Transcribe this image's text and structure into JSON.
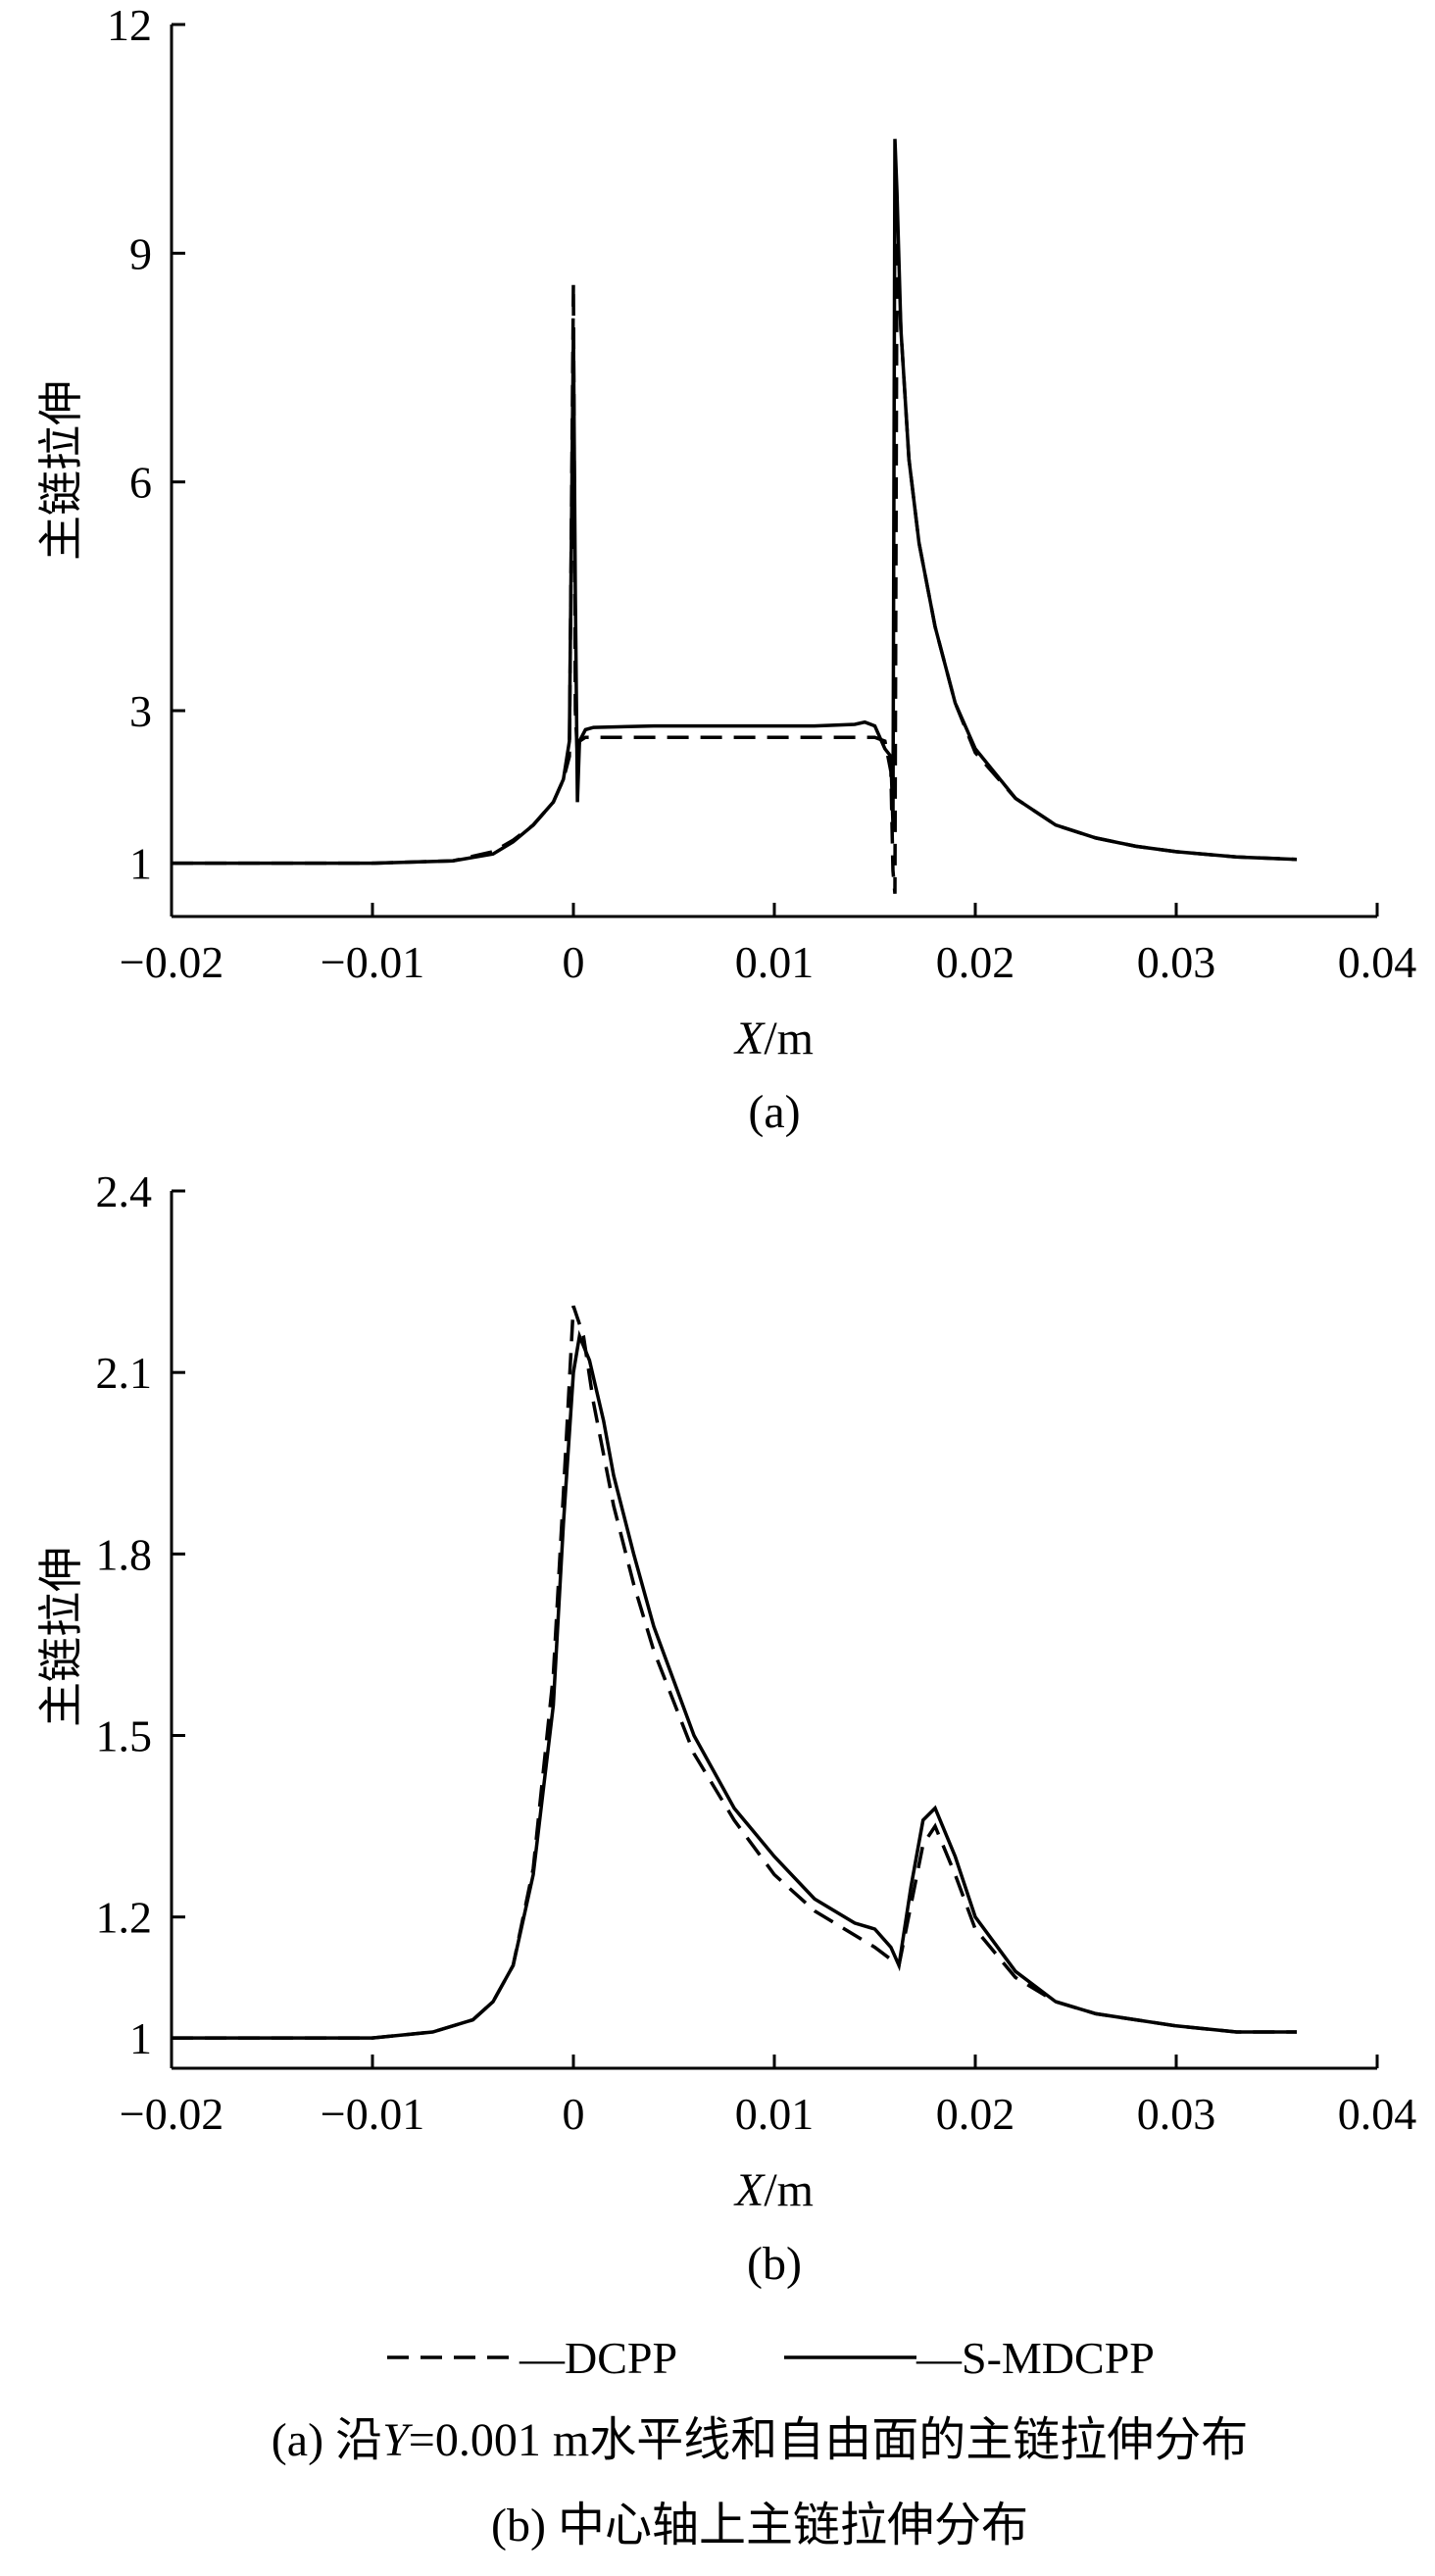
{
  "chart_data": [
    {
      "type": "line",
      "panel_label": "(a)",
      "xlabel_italic": "X",
      "xlabel_unit": "/m",
      "ylabel": "主链拉伸",
      "xlim": [
        -0.02,
        0.04
      ],
      "ylim": [
        0.3,
        12
      ],
      "xticks": [
        -0.02,
        -0.01,
        0,
        0.01,
        0.02,
        0.03,
        0.04
      ],
      "xtick_labels": [
        "−0.02",
        "−0.01",
        "0",
        "0.01",
        "0.02",
        "0.03",
        "0.04"
      ],
      "yticks": [
        1,
        3,
        6,
        9,
        12
      ],
      "ytick_labels": [
        "1",
        "3",
        "6",
        "9",
        "12"
      ],
      "series": [
        {
          "name": "DCPP",
          "style": "dashed",
          "x": [
            -0.02,
            -0.01,
            -0.006,
            -0.004,
            -0.003,
            -0.002,
            -0.001,
            -0.0005,
            -0.0002,
            0.0,
            0.0001,
            0.0002,
            0.0003,
            0.0006,
            0.001,
            0.004,
            0.008,
            0.012,
            0.015,
            0.0155,
            0.0158,
            0.0159,
            0.016,
            0.0161,
            0.0163,
            0.0167,
            0.0172,
            0.018,
            0.019,
            0.02,
            0.022,
            0.024,
            0.026,
            0.028,
            0.03,
            0.033,
            0.036
          ],
          "y": [
            1.0,
            1.0,
            1.03,
            1.15,
            1.3,
            1.5,
            1.8,
            2.1,
            2.4,
            8.6,
            3.0,
            2.4,
            2.6,
            2.65,
            2.65,
            2.65,
            2.65,
            2.65,
            2.65,
            2.6,
            2.2,
            0.9,
            0.6,
            9.2,
            8.0,
            6.3,
            5.2,
            4.1,
            3.1,
            2.45,
            1.85,
            1.5,
            1.33,
            1.22,
            1.15,
            1.08,
            1.05
          ]
        },
        {
          "name": "S-MDCPP",
          "style": "solid",
          "x": [
            -0.02,
            -0.01,
            -0.006,
            -0.004,
            -0.003,
            -0.002,
            -0.001,
            -0.0005,
            -0.0002,
            0.0,
            0.0001,
            0.0002,
            0.0003,
            0.0006,
            0.001,
            0.004,
            0.008,
            0.012,
            0.014,
            0.0145,
            0.015,
            0.0155,
            0.0158,
            0.0159,
            0.016,
            0.0161,
            0.0163,
            0.0167,
            0.0172,
            0.018,
            0.019,
            0.02,
            0.022,
            0.024,
            0.026,
            0.028,
            0.03,
            0.033,
            0.036
          ],
          "y": [
            1.0,
            1.0,
            1.03,
            1.12,
            1.28,
            1.5,
            1.8,
            2.1,
            2.6,
            8.0,
            4.5,
            1.8,
            2.6,
            2.75,
            2.78,
            2.8,
            2.8,
            2.8,
            2.82,
            2.85,
            2.8,
            2.5,
            2.4,
            1.5,
            10.5,
            9.8,
            8.0,
            6.3,
            5.2,
            4.1,
            3.1,
            2.5,
            1.85,
            1.5,
            1.33,
            1.22,
            1.15,
            1.08,
            1.05
          ]
        }
      ]
    },
    {
      "type": "line",
      "panel_label": "(b)",
      "xlabel_italic": "X",
      "xlabel_unit": "/m",
      "ylabel": "主链拉伸",
      "xlim": [
        -0.02,
        0.04
      ],
      "ylim": [
        0.95,
        2.4
      ],
      "xticks": [
        -0.02,
        -0.01,
        0,
        0.01,
        0.02,
        0.03,
        0.04
      ],
      "xtick_labels": [
        "−0.02",
        "−0.01",
        "0",
        "0.01",
        "0.02",
        "0.03",
        "0.04"
      ],
      "yticks": [
        1,
        1.2,
        1.5,
        1.8,
        2.1,
        2.4
      ],
      "ytick_labels": [
        "1",
        "1.2",
        "1.5",
        "1.8",
        "2.1",
        "2.4"
      ],
      "series": [
        {
          "name": "DCPP",
          "style": "dashed",
          "x": [
            -0.02,
            -0.01,
            -0.007,
            -0.005,
            -0.004,
            -0.003,
            -0.002,
            -0.001,
            -0.0005,
            0.0,
            0.0005,
            0.001,
            0.002,
            0.003,
            0.004,
            0.006,
            0.008,
            0.01,
            0.012,
            0.014,
            0.015,
            0.0158,
            0.0162,
            0.0168,
            0.0174,
            0.018,
            0.019,
            0.02,
            0.022,
            0.024,
            0.026,
            0.028,
            0.03,
            0.033,
            0.036
          ],
          "y": [
            1.0,
            1.0,
            1.01,
            1.03,
            1.06,
            1.12,
            1.28,
            1.6,
            1.9,
            2.21,
            2.16,
            2.05,
            1.88,
            1.75,
            1.64,
            1.47,
            1.36,
            1.27,
            1.21,
            1.17,
            1.15,
            1.13,
            1.12,
            1.22,
            1.32,
            1.35,
            1.27,
            1.18,
            1.1,
            1.06,
            1.04,
            1.03,
            1.02,
            1.01,
            1.01
          ]
        },
        {
          "name": "S-MDCPP",
          "style": "solid",
          "x": [
            -0.02,
            -0.01,
            -0.007,
            -0.005,
            -0.004,
            -0.003,
            -0.002,
            -0.001,
            -0.0005,
            0.0,
            0.0003,
            0.0008,
            0.0015,
            0.002,
            0.003,
            0.004,
            0.006,
            0.008,
            0.01,
            0.012,
            0.014,
            0.015,
            0.0158,
            0.0162,
            0.0168,
            0.0174,
            0.018,
            0.019,
            0.02,
            0.022,
            0.024,
            0.026,
            0.028,
            0.03,
            0.033,
            0.036
          ],
          "y": [
            1.0,
            1.0,
            1.01,
            1.03,
            1.06,
            1.12,
            1.27,
            1.55,
            1.85,
            2.1,
            2.16,
            2.12,
            2.02,
            1.93,
            1.8,
            1.68,
            1.5,
            1.38,
            1.3,
            1.23,
            1.19,
            1.18,
            1.15,
            1.12,
            1.25,
            1.36,
            1.38,
            1.3,
            1.2,
            1.11,
            1.06,
            1.04,
            1.03,
            1.02,
            1.01,
            1.01
          ]
        }
      ]
    }
  ],
  "legend": {
    "items": [
      {
        "name": "DCPP",
        "style": "dashed",
        "label": "—DCPP"
      },
      {
        "name": "S-MDCPP",
        "style": "solid",
        "label": "—S-MDCPP"
      }
    ]
  },
  "caption": {
    "line1_prefix": "(a) 沿",
    "line1_italic": "Y",
    "line1_suffix": "=0.001 m水平线和自由面的主链拉伸分布",
    "line2": "(b) 中心轴上主链拉伸分布"
  }
}
